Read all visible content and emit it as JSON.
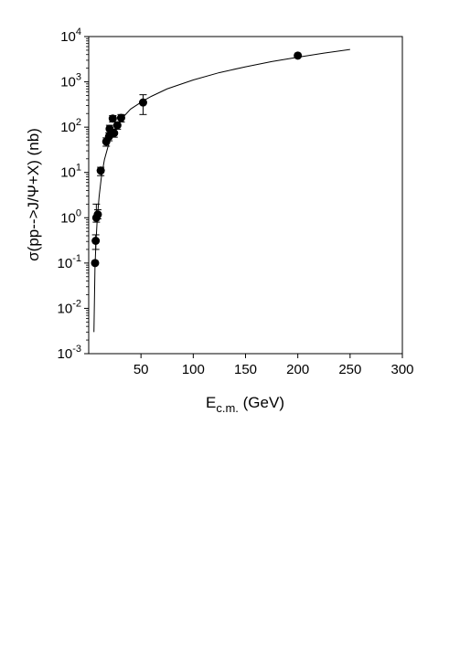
{
  "chart_data": {
    "type": "scatter",
    "xlabel": {
      "main": "E",
      "sub": "c.m.",
      "unit": " (GeV)"
    },
    "ylabel": "σ(pp-->J/Ψ+X) (nb)",
    "x_scale": "linear",
    "y_scale": "log",
    "xlim": [
      0,
      300
    ],
    "ylim": [
      0.001,
      10000
    ],
    "x_ticks": [
      50,
      100,
      150,
      200,
      250,
      300
    ],
    "y_ticks": [
      {
        "value": 0.001,
        "base": "10",
        "exp": "-3"
      },
      {
        "value": 0.01,
        "base": "10",
        "exp": "-2"
      },
      {
        "value": 0.1,
        "base": "10",
        "exp": "-1"
      },
      {
        "value": 1,
        "base": "10",
        "exp": "0"
      },
      {
        "value": 10,
        "base": "10",
        "exp": "1"
      },
      {
        "value": 100,
        "base": "10",
        "exp": "2"
      },
      {
        "value": 1000,
        "base": "10",
        "exp": "3"
      },
      {
        "value": 10000,
        "base": "10",
        "exp": "4"
      }
    ],
    "grid": false,
    "legend": "none",
    "marker_color": "#000000",
    "points": [
      {
        "x": 6.1,
        "y": 0.1
      },
      {
        "x": 6.7,
        "y": 0.31,
        "err_low": 0.2,
        "err_high": 0.42
      },
      {
        "x": 7.3,
        "y": 1.0,
        "err_low": 0.8,
        "err_high": 2.0
      },
      {
        "x": 8.7,
        "y": 1.18,
        "err_low": 0.95,
        "err_high": 1.5
      },
      {
        "x": 11.5,
        "y": 11,
        "err_low": 8.5,
        "err_high": 13
      },
      {
        "x": 16.8,
        "y": 48,
        "err_low": 38,
        "err_high": 58
      },
      {
        "x": 19.4,
        "y": 62,
        "err_low": 50,
        "err_high": 75
      },
      {
        "x": 20.0,
        "y": 92,
        "err_low": 75,
        "err_high": 110
      },
      {
        "x": 23.0,
        "y": 155,
        "err_low": 130,
        "err_high": 180
      },
      {
        "x": 24.3,
        "y": 74,
        "err_low": 60,
        "err_high": 90
      },
      {
        "x": 27.4,
        "y": 110,
        "err_low": 90,
        "err_high": 130
      },
      {
        "x": 31.0,
        "y": 160,
        "err_low": 130,
        "err_high": 190
      },
      {
        "x": 52.0,
        "y": 350,
        "err_low": 190,
        "err_high": 520
      },
      {
        "x": 200.0,
        "y": 3800
      }
    ],
    "fit_curve": {
      "x": [
        5,
        6,
        7,
        8,
        9,
        10,
        12,
        15,
        20,
        25,
        30,
        40,
        52,
        60,
        75,
        100,
        125,
        150,
        175,
        200,
        225,
        250
      ],
      "y": [
        0.003,
        0.08,
        0.3,
        0.8,
        1.6,
        3.0,
        7.5,
        19,
        50,
        90,
        140,
        250,
        380,
        480,
        700,
        1100,
        1600,
        2150,
        2800,
        3500,
        4300,
        5200
      ]
    }
  }
}
